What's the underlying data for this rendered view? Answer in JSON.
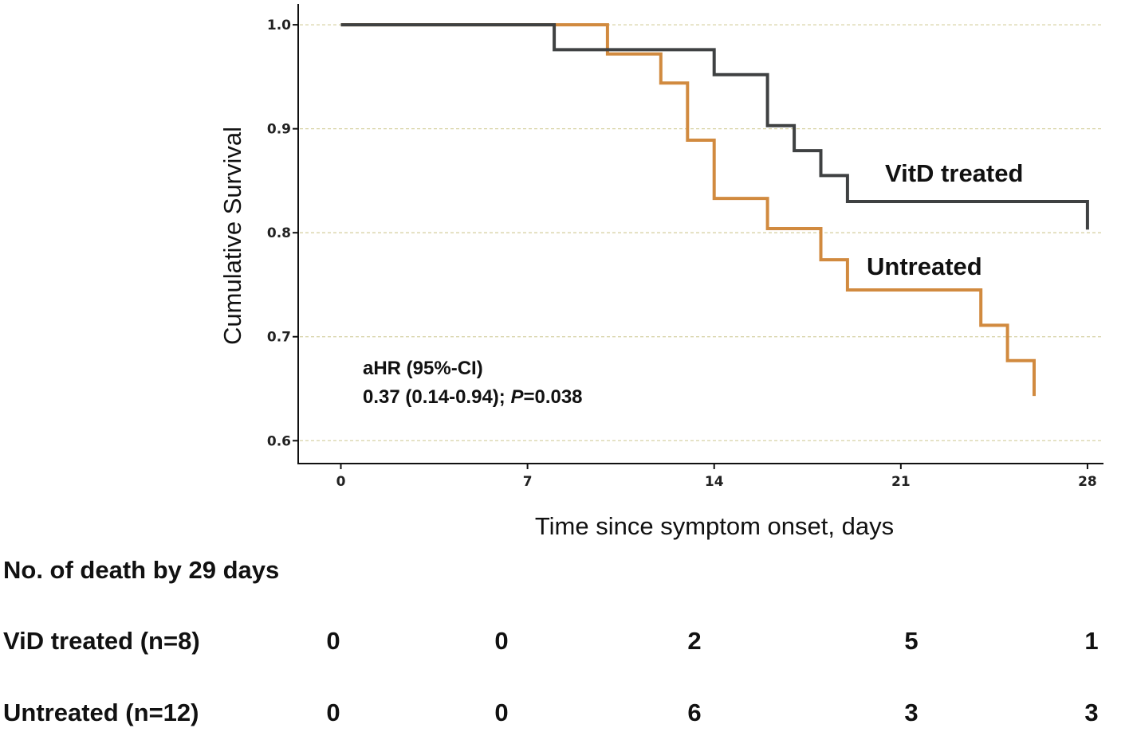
{
  "chart_data": {
    "type": "line",
    "xlabel": "Time since symptom onset, days",
    "ylabel": "Cumulative Survival",
    "xlim": [
      -1.6,
      28.6
    ],
    "ylim": [
      0.578,
      1.02
    ],
    "x_ticks": [
      0,
      7,
      14,
      21,
      28
    ],
    "y_ticks": [
      0.6,
      0.7,
      0.8,
      0.9,
      1.0
    ],
    "y_tick_labels": [
      "0.6",
      "0.7",
      "0.8",
      "0.9",
      "1.0"
    ],
    "grid": "horizontal dashed",
    "step": true,
    "series": [
      {
        "name": "VitD treated",
        "color": "#3f4142",
        "x": [
          0,
          8,
          14,
          16,
          17,
          18,
          19,
          28,
          28
        ],
        "y": [
          1.0,
          0.976,
          0.952,
          0.903,
          0.879,
          0.855,
          0.83,
          0.83,
          0.803
        ]
      },
      {
        "name": "Untreated",
        "color": "#d18a3f",
        "x": [
          0,
          10,
          12,
          13,
          14,
          16,
          18,
          19,
          24,
          25,
          26
        ],
        "y": [
          1.0,
          0.972,
          0.944,
          0.889,
          0.833,
          0.804,
          0.774,
          0.745,
          0.711,
          0.677,
          0.643
        ]
      }
    ],
    "annotation": {
      "line1": "aHR (95%-CI)",
      "line2_prefix": "0.37 (0.14-0.94); ",
      "line2_p": "P",
      "line2_suffix": "=0.038"
    }
  },
  "risk_table": {
    "title": "No. of death by 29 days",
    "rows": [
      {
        "label": "ViD treated (n=8)",
        "values": [
          "0",
          "0",
          "2",
          "5",
          "1"
        ]
      },
      {
        "label": "Untreated (n=12)",
        "values": [
          "0",
          "0",
          "6",
          "3",
          "3"
        ]
      }
    ]
  }
}
